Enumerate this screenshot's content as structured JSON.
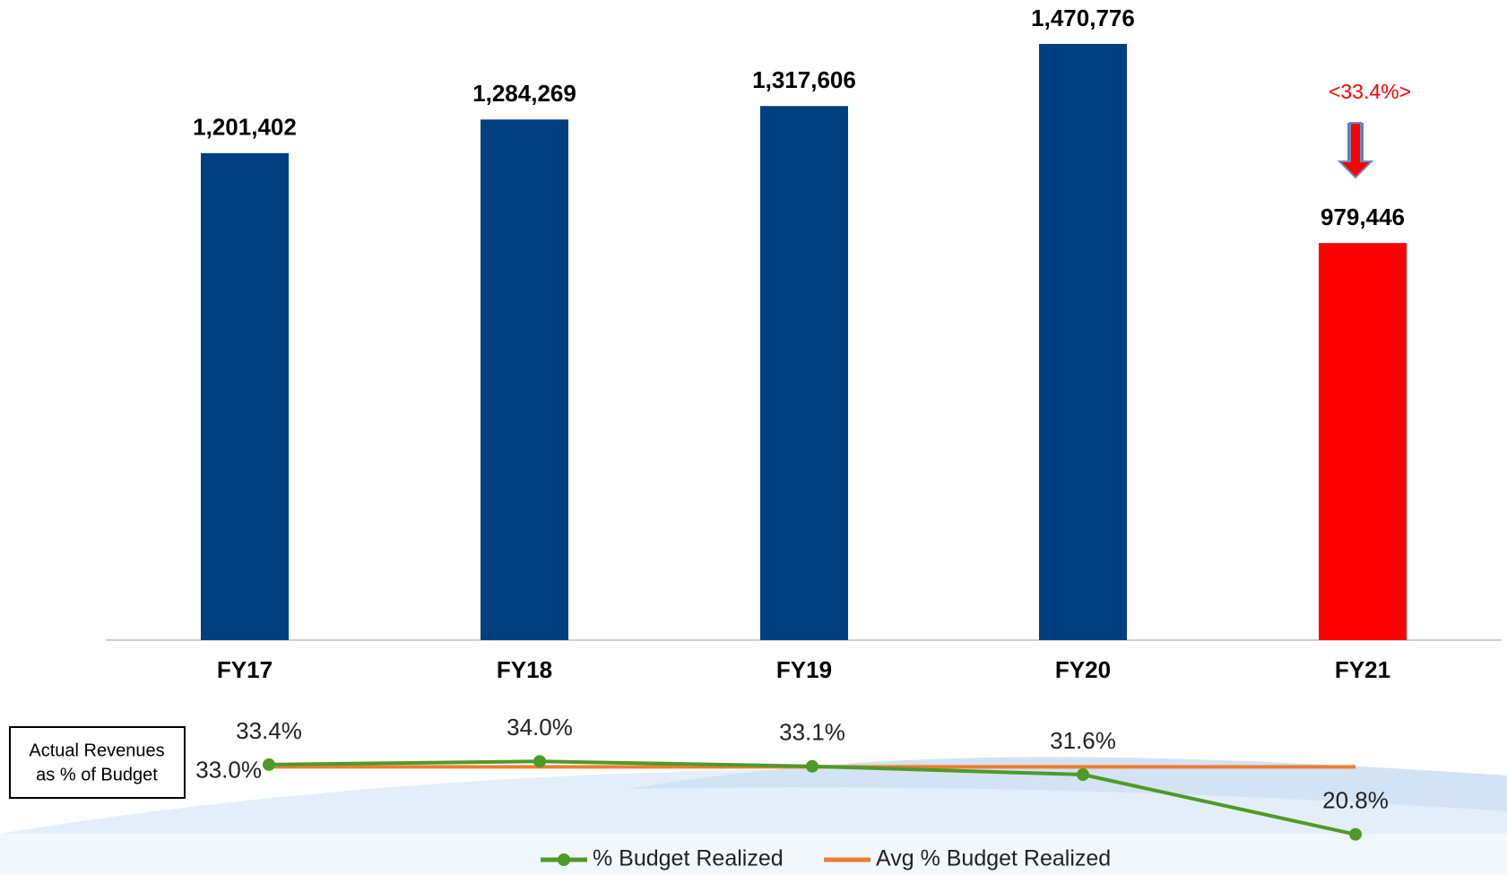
{
  "chart_data": [
    {
      "type": "bar",
      "categories": [
        "FY17",
        "FY18",
        "FY19",
        "FY20",
        "FY21"
      ],
      "values": [
        1201402,
        1284269,
        1317606,
        1470776,
        979446
      ],
      "value_labels": [
        "1,201,402",
        "1,284,269",
        "1,317,606",
        "1,470,776",
        "979,446"
      ],
      "colors": [
        "#003f80",
        "#003f80",
        "#003f80",
        "#003f80",
        "#ff0000"
      ],
      "annotation": "<33.4%>",
      "annotation_color": "#ff0000"
    },
    {
      "type": "line",
      "box_text": [
        "Actual Revenues",
        "as % of Budget"
      ],
      "legend": "bottom",
      "series": [
        {
          "name": "% Budget Realized",
          "color": "#4e9a28",
          "marker": true,
          "values": [
            33.4,
            34.0,
            33.1,
            31.6,
            20.8
          ],
          "value_labels": [
            "33.4%",
            "34.0%",
            "33.1%",
            "31.6%",
            "20.8%"
          ],
          "label_colors": [
            "#222222",
            "#222222",
            "#222222",
            "#222222",
            "#ff0000"
          ]
        },
        {
          "name": "Avg % Budget Realized",
          "color": "#ed7d31",
          "marker": false,
          "values": [
            33.0,
            33.0,
            33.0,
            33.0,
            33.0
          ],
          "value_labels": [
            "33.0%",
            null,
            null,
            null,
            null
          ]
        }
      ]
    }
  ]
}
